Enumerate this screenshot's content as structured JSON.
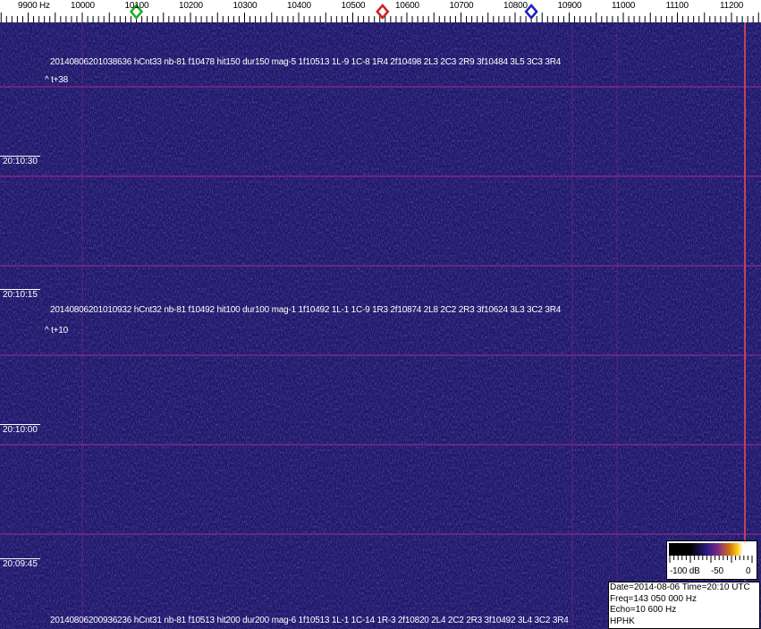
{
  "scale": {
    "unit_label": "9900 Hz",
    "ticks": [
      "10000",
      "10100",
      "10200",
      "10300",
      "10400",
      "10500",
      "10600",
      "10700",
      "10800",
      "10900",
      "11000",
      "11100",
      "11200"
    ],
    "markers": [
      {
        "name": "green-marker",
        "freq_hz": 10100,
        "color": "#22aa22"
      },
      {
        "name": "red-marker",
        "freq_hz": 10555,
        "color": "#cc2020"
      },
      {
        "name": "blue-marker",
        "freq_hz": 10830,
        "color": "#1a20c0"
      }
    ]
  },
  "events": [
    {
      "line": "20140806201038636 hCnt33 nb-81 f10478 hit150 dur150 mag-5 1f10513 1L-9 1C-8 1R4 2f10498 2L3 2C3 2R9 3f10484 3L5 3C3 3R4",
      "offset": "^ t+38"
    },
    {
      "line": "20140806201010932 hCnt32 nb-81 f10492 hit100 dur100 mag-1 1f10492 1L-1 1C-9 1R3 2f10874 2L8 2C2 2R3 3f10624 3L3 3C2 3R4",
      "offset": "^ t+10"
    },
    {
      "line": "20140806200936236 hCnt31 nb-81 f10513 hit200 dur200 mag-6 1f10513 1L-1 1C-14 1R-3 2f10820 2L4 2C2 2R3 3f10492 3L4 3C2 3R4"
    }
  ],
  "time_labels": [
    "20:10:30",
    "20:10:15",
    "20:10:00",
    "20:09:45"
  ],
  "legend": {
    "min": "-100 dB",
    "mid": "-50",
    "max": "0"
  },
  "info": {
    "date_time": "Date=2014-08-06 Time=20:10 UTC",
    "freq": "Freq=143 050 000 Hz",
    "echo": "Echo=10 600 Hz",
    "station": "HPHK"
  },
  "colors": {
    "background": "#1c1866",
    "grid": "#8a2a8a",
    "carrier": "#c04060"
  }
}
